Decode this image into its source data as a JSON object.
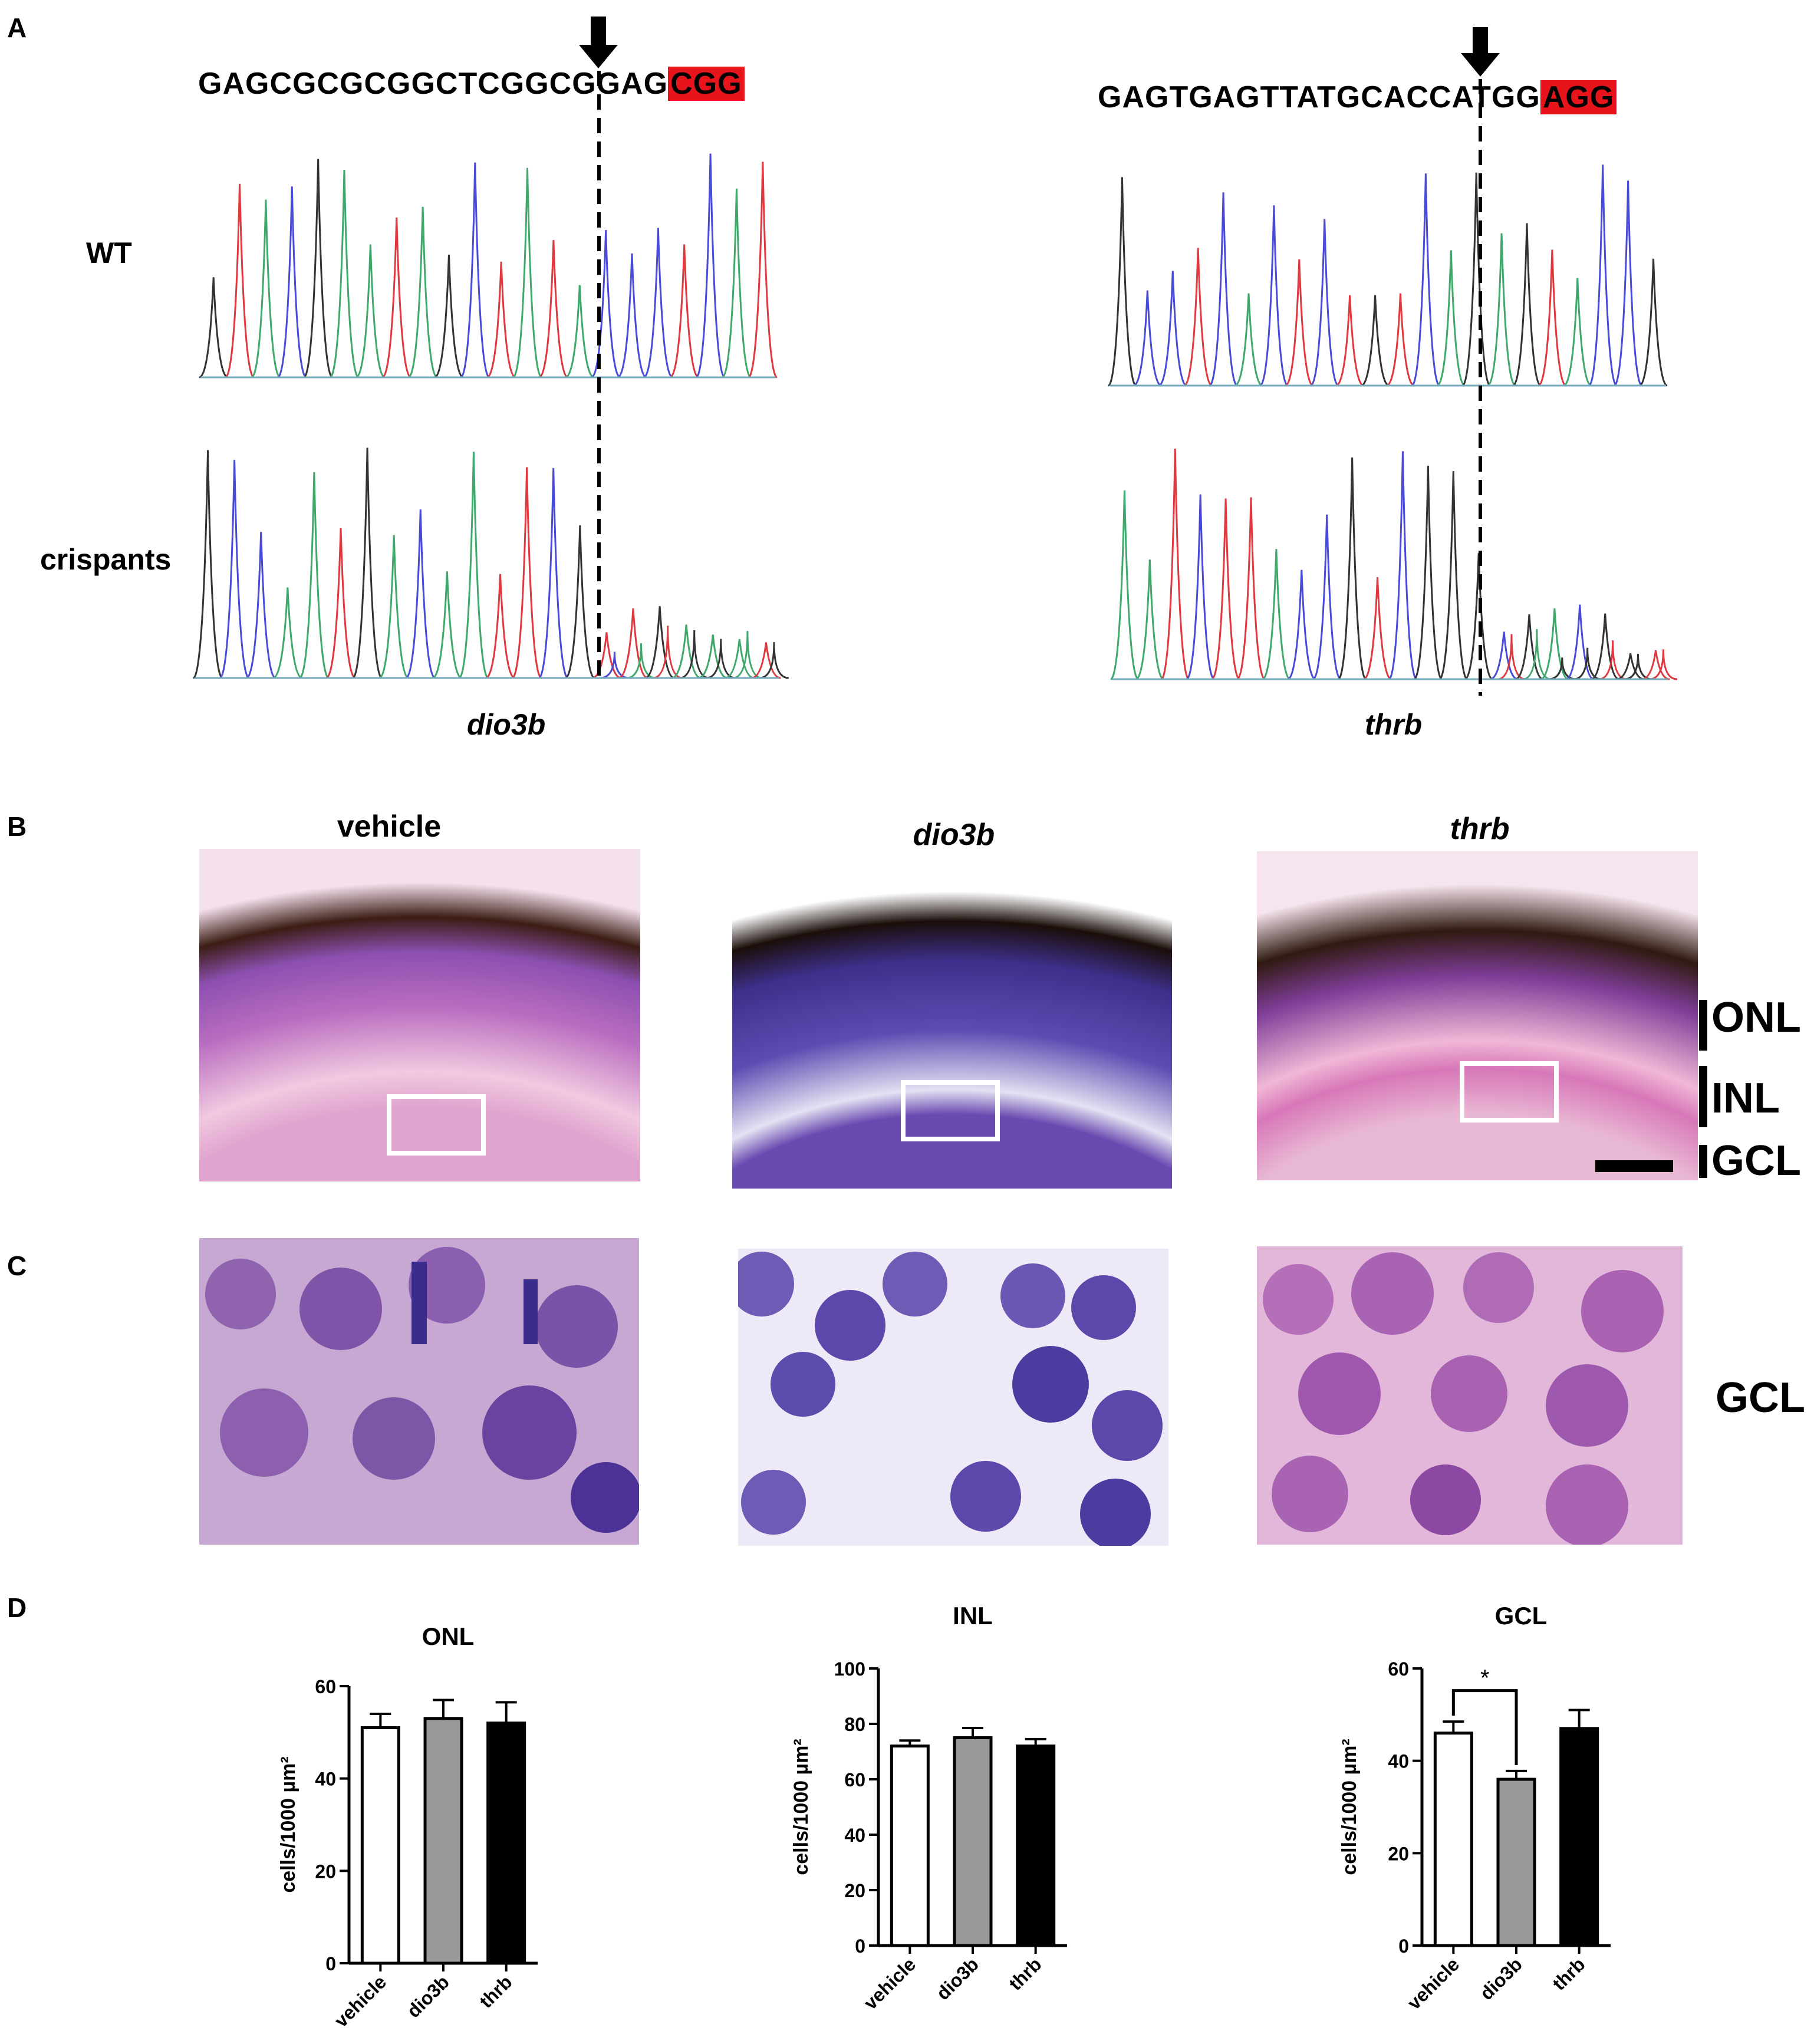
{
  "panelA": {
    "label": "A",
    "dio3b": {
      "sequence": "GAGCGCGCGGCTCGGCGGAG",
      "pam": "CGG",
      "gene": "dio3b"
    },
    "thrb": {
      "sequence": "GAGTGAGTTATGCACCATGG",
      "pam": "AGG",
      "gene": "thrb"
    },
    "row_labels": [
      "WT",
      "crispants"
    ],
    "trace_colors": [
      "#3fa86b",
      "#4a4ad8",
      "#e0383f",
      "#333333"
    ]
  },
  "panelB": {
    "label": "B",
    "titles": [
      "vehicle",
      "dio3b",
      "thrb"
    ],
    "layers": [
      "ONL",
      "INL",
      "GCL"
    ]
  },
  "panelC": {
    "label": "C",
    "layer": "GCL"
  },
  "panelD": {
    "label": "D",
    "ylabel": "cells/1000 µm²",
    "bar_colors": [
      "#ffffff",
      "#999999",
      "#000000"
    ]
  },
  "chart_data": [
    {
      "type": "bar",
      "title": "ONL",
      "categories": [
        "vehicle",
        "dio3b",
        "thrb"
      ],
      "values": [
        51,
        53,
        52
      ],
      "errors": [
        3,
        4,
        4.5
      ],
      "ylabel": "cells/1000 µm²",
      "ylim": [
        0,
        60
      ],
      "yticks": [
        0,
        20,
        40,
        60
      ]
    },
    {
      "type": "bar",
      "title": "INL",
      "categories": [
        "vehicle",
        "dio3b",
        "thrb"
      ],
      "values": [
        72,
        75,
        72
      ],
      "errors": [
        2,
        3.5,
        2.5
      ],
      "ylabel": "cells/1000 µm²",
      "ylim": [
        0,
        100
      ],
      "yticks": [
        0,
        20,
        40,
        60,
        80,
        100
      ]
    },
    {
      "type": "bar",
      "title": "GCL",
      "categories": [
        "vehicle",
        "dio3b",
        "thrb"
      ],
      "values": [
        46,
        36,
        47
      ],
      "errors": [
        2.5,
        1.8,
        4
      ],
      "ylabel": "cells/1000 µm²",
      "ylim": [
        0,
        60
      ],
      "yticks": [
        0,
        20,
        40,
        60
      ],
      "significance": {
        "pair": [
          "vehicle",
          "dio3b"
        ],
        "label": "*"
      }
    }
  ]
}
